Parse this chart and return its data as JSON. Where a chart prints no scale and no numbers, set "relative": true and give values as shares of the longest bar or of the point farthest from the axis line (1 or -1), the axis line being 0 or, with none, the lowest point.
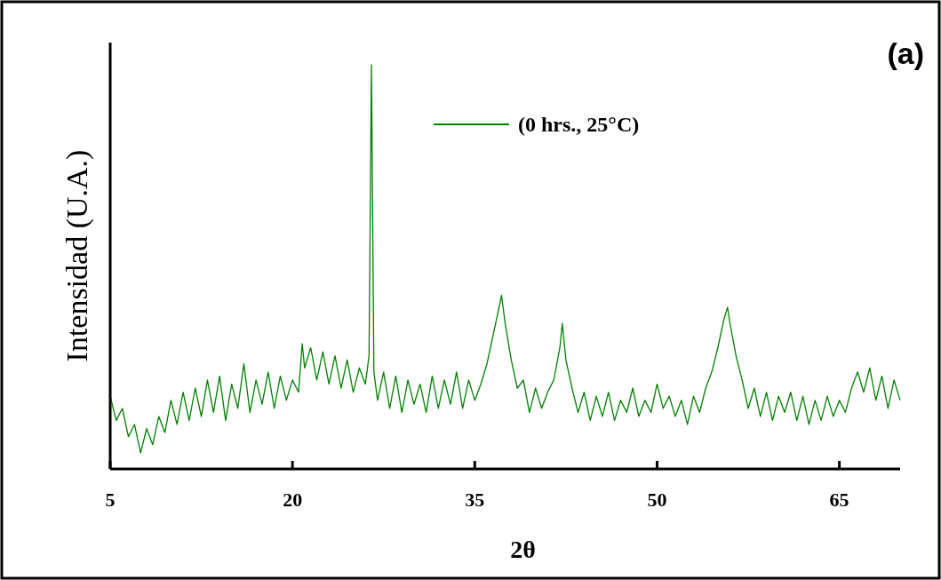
{
  "chart_data": {
    "type": "line",
    "title": "(a)",
    "xlabel": "2θ",
    "ylabel": "Intensidad (U.A.)",
    "relative": true,
    "xlim": [
      5,
      70
    ],
    "xticks": [
      5,
      20,
      35,
      50,
      65
    ],
    "legend": "top right",
    "line_style": "solid",
    "grid": false,
    "series": [
      {
        "name": "(0 hrs., 25°C)",
        "color": "#008000",
        "x": [
          5,
          5.5,
          6,
          6.5,
          7,
          7.5,
          8,
          8.5,
          9,
          9.5,
          10,
          10.5,
          11,
          11.5,
          12,
          12.5,
          13,
          13.5,
          14,
          14.5,
          15,
          15.5,
          16,
          16.5,
          17,
          17.5,
          18,
          18.5,
          19,
          19.5,
          20,
          20.5,
          20.8,
          21,
          21.5,
          22,
          22.5,
          23,
          23.5,
          24,
          24.5,
          25,
          25.5,
          26,
          26.3,
          26.5,
          26.7,
          27,
          27.5,
          28,
          28.5,
          29,
          29.5,
          30,
          30.5,
          31,
          31.5,
          32,
          32.5,
          33,
          33.5,
          34,
          34.5,
          35,
          35.5,
          36,
          36.5,
          37,
          37.2,
          37.5,
          38,
          38.5,
          39,
          39.5,
          40,
          40.5,
          41,
          41.5,
          42,
          42.2,
          42.5,
          43,
          43.5,
          44,
          44.5,
          45,
          45.5,
          46,
          46.5,
          47,
          47.5,
          48,
          48.5,
          49,
          49.5,
          50,
          50.5,
          51,
          51.5,
          52,
          52.5,
          53,
          53.5,
          54,
          54.5,
          55,
          55.5,
          55.8,
          56,
          56.5,
          57,
          57.5,
          58,
          58.5,
          59,
          59.5,
          60,
          60.5,
          61,
          61.5,
          62,
          62.5,
          63,
          63.5,
          64,
          64.5,
          65,
          65.5,
          66,
          66.5,
          67,
          67.5,
          68,
          68.5,
          69,
          69.5,
          70
        ],
        "values": [
          0.18,
          0.12,
          0.15,
          0.08,
          0.11,
          0.04,
          0.1,
          0.06,
          0.13,
          0.09,
          0.17,
          0.11,
          0.19,
          0.12,
          0.2,
          0.13,
          0.22,
          0.14,
          0.23,
          0.12,
          0.21,
          0.15,
          0.26,
          0.14,
          0.22,
          0.16,
          0.24,
          0.15,
          0.23,
          0.17,
          0.22,
          0.19,
          0.31,
          0.25,
          0.3,
          0.22,
          0.29,
          0.21,
          0.28,
          0.2,
          0.27,
          0.19,
          0.25,
          0.21,
          0.28,
          1.0,
          0.24,
          0.17,
          0.24,
          0.15,
          0.23,
          0.14,
          0.22,
          0.16,
          0.21,
          0.14,
          0.23,
          0.15,
          0.22,
          0.16,
          0.24,
          0.15,
          0.22,
          0.17,
          0.21,
          0.26,
          0.33,
          0.4,
          0.43,
          0.36,
          0.27,
          0.2,
          0.22,
          0.14,
          0.2,
          0.15,
          0.19,
          0.22,
          0.3,
          0.36,
          0.27,
          0.2,
          0.14,
          0.19,
          0.12,
          0.18,
          0.13,
          0.19,
          0.12,
          0.17,
          0.14,
          0.2,
          0.13,
          0.17,
          0.14,
          0.21,
          0.15,
          0.18,
          0.13,
          0.17,
          0.11,
          0.18,
          0.14,
          0.2,
          0.24,
          0.3,
          0.37,
          0.4,
          0.36,
          0.28,
          0.22,
          0.15,
          0.2,
          0.13,
          0.19,
          0.12,
          0.18,
          0.14,
          0.19,
          0.12,
          0.18,
          0.11,
          0.17,
          0.12,
          0.18,
          0.13,
          0.17,
          0.14,
          0.2,
          0.24,
          0.19,
          0.25,
          0.17,
          0.23,
          0.15,
          0.22,
          0.17
        ]
      }
    ]
  }
}
